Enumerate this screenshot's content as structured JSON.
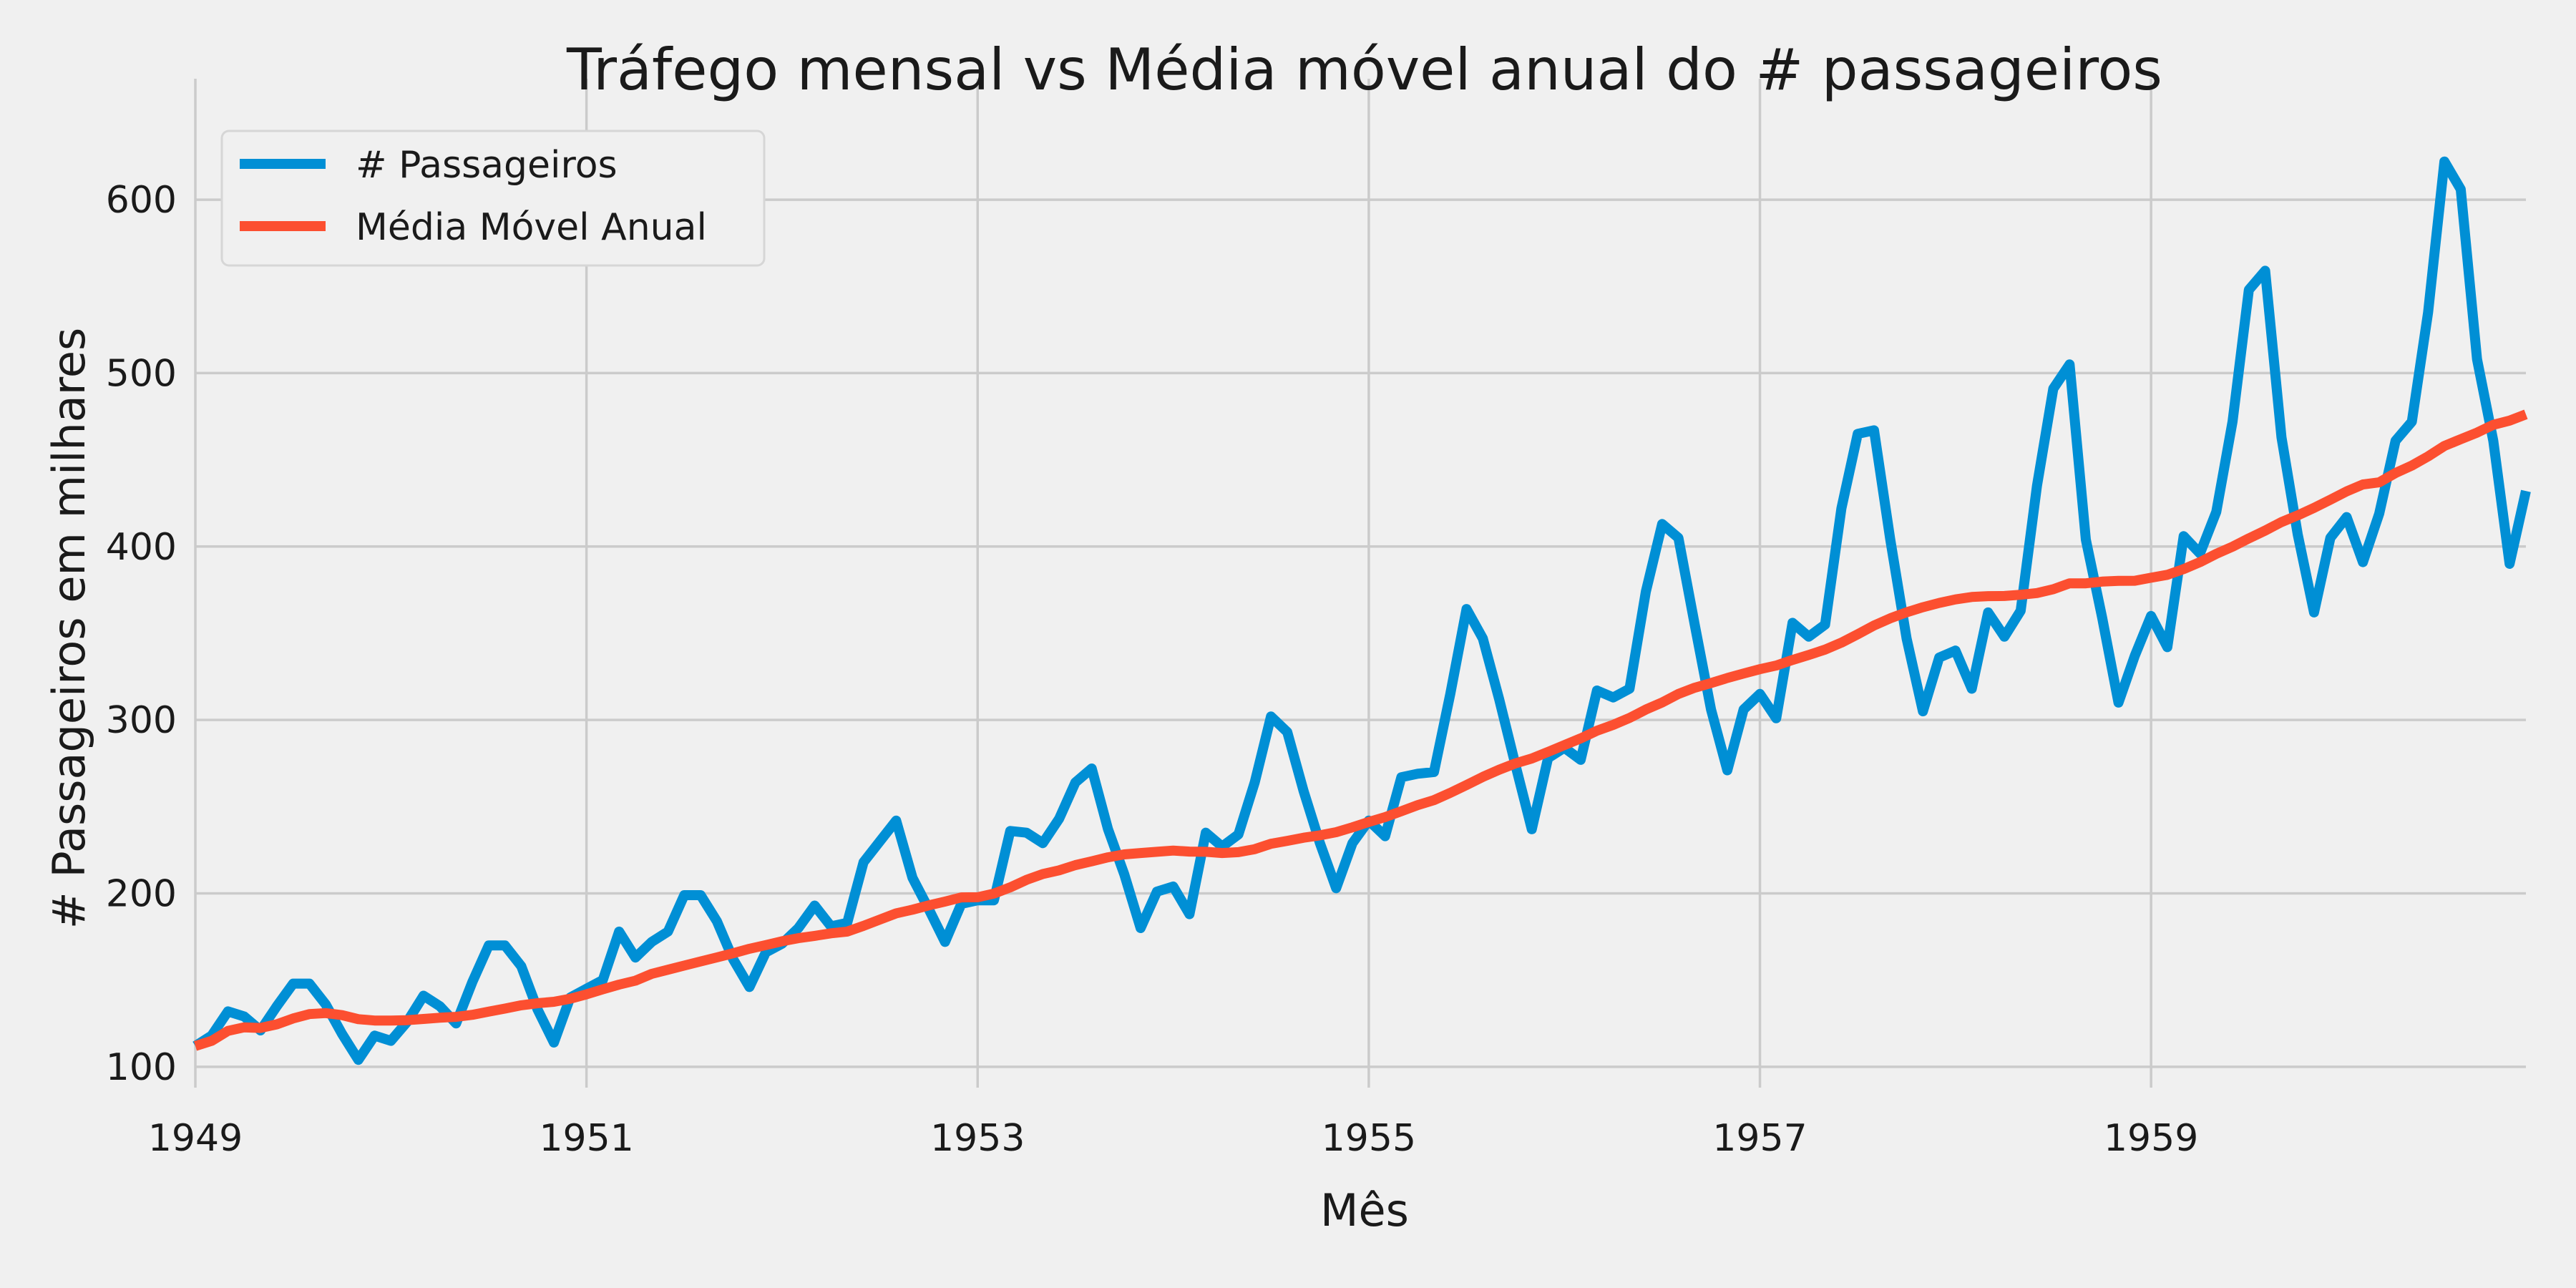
{
  "colors": {
    "background": "#f0f0f0",
    "grid": "#cbcbcb",
    "passengers": "#008fd5",
    "moving_average": "#fc4f30"
  },
  "chart_data": {
    "type": "line",
    "title": "Tráfego mensal vs Média móvel anual do # passageiros",
    "xlabel": "Mês",
    "ylabel": "# Passageiros em milhares",
    "x_unit": "month",
    "x_start": "1949-01",
    "xlim": [
      "1949-01",
      "1960-12"
    ],
    "ylim": [
      88,
      645
    ],
    "x_ticks": [
      "1949",
      "1951",
      "1953",
      "1955",
      "1957",
      "1959"
    ],
    "y_ticks": [
      100,
      200,
      300,
      400,
      500,
      600
    ],
    "grid": true,
    "legend": "top-left",
    "series": [
      {
        "name": "# Passageiros",
        "color": "#008fd5",
        "values": [
          112,
          118,
          132,
          129,
          121,
          135,
          148,
          148,
          136,
          119,
          104,
          118,
          115,
          126,
          141,
          135,
          125,
          149,
          170,
          170,
          158,
          133,
          114,
          140,
          145,
          150,
          178,
          163,
          172,
          178,
          199,
          199,
          184,
          162,
          146,
          166,
          171,
          180,
          193,
          181,
          183,
          218,
          230,
          242,
          209,
          191,
          172,
          194,
          196,
          196,
          236,
          235,
          229,
          243,
          264,
          272,
          237,
          211,
          180,
          201,
          204,
          188,
          235,
          227,
          234,
          264,
          302,
          293,
          259,
          229,
          203,
          229,
          242,
          233,
          267,
          269,
          270,
          315,
          364,
          347,
          312,
          274,
          237,
          278,
          284,
          277,
          317,
          313,
          318,
          374,
          413,
          405,
          355,
          306,
          271,
          306,
          315,
          301,
          356,
          348,
          355,
          422,
          465,
          467,
          404,
          347,
          305,
          336,
          340,
          318,
          362,
          348,
          363,
          435,
          491,
          505,
          404,
          359,
          310,
          337,
          360,
          342,
          406,
          396,
          420,
          472,
          548,
          559,
          463,
          407,
          362,
          405,
          417,
          391,
          419,
          461,
          472,
          535,
          622,
          606,
          508,
          461,
          390,
          432
        ]
      },
      {
        "name": "Média Móvel Anual",
        "color": "#fc4f30",
        "values": [
          112,
          115,
          120.7,
          122.8,
          122.4,
          124.5,
          127.9,
          130.4,
          131,
          129.8,
          127.5,
          126.7,
          126.7,
          126.9,
          127.6,
          128.3,
          128.8,
          130,
          131.8,
          133.6,
          135.5,
          136.7,
          137.5,
          139.3,
          141.8,
          144.7,
          147.4,
          149.7,
          153.6,
          156,
          158.4,
          160.8,
          163.1,
          165.5,
          168.1,
          170.2,
          172.4,
          174.2,
          175.5,
          177,
          178,
          181.3,
          184.9,
          188.5,
          190.6,
          193.1,
          195.3,
          197.7,
          197.8,
          199.9,
          203.5,
          207.8,
          211.2,
          213.3,
          216.3,
          218.5,
          220.8,
          222.5,
          223.3,
          224,
          224.7,
          224.1,
          224,
          223.3,
          223.8,
          225.5,
          228.6,
          230.3,
          232.1,
          233.5,
          235.3,
          238.1,
          241.2,
          244,
          247.4,
          250.9,
          253.8,
          258,
          262.5,
          267.2,
          271.3,
          275,
          277.8,
          281.6,
          285.5,
          289.4,
          293.8,
          297.2,
          301.2,
          306.0,
          310.1,
          315.0,
          318.6,
          321.3,
          324.2,
          326.8,
          329.3,
          331.4,
          334.6,
          337.5,
          340.6,
          344.6,
          349.4,
          354.5,
          358.6,
          362.1,
          365.0,
          367.5,
          369.5,
          370.9,
          371.4,
          371.5,
          372.2,
          373.2,
          375.4,
          378.8,
          378.8,
          379.8,
          380.2,
          380.3,
          382,
          383.7,
          387,
          391.0,
          395.8,
          399.9,
          404.7,
          409.2,
          414.1,
          418.0,
          422.3,
          427.0,
          431.8,
          435.8,
          437.0,
          442.4,
          446.7,
          452.0,
          458.0,
          461.9,
          465.7,
          470.2,
          472.6,
          476.2
        ]
      }
    ]
  }
}
